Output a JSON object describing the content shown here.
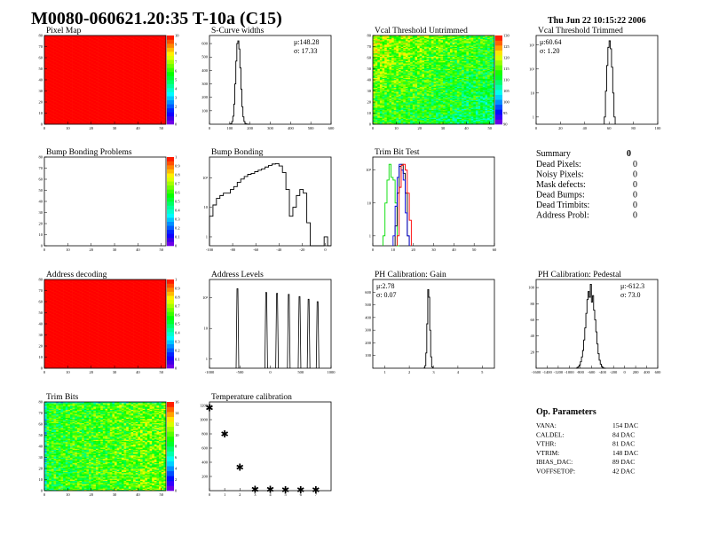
{
  "header": {
    "title": "M0080-060621.20:35 T-10a (C15)",
    "date": "Thu Jun 22 10:15:22 2006"
  },
  "summary": {
    "title": "Summary",
    "total": "0",
    "rows": [
      {
        "label": "Dead Pixels:",
        "value": "0"
      },
      {
        "label": "Noisy Pixels:",
        "value": "0"
      },
      {
        "label": "Mask defects:",
        "value": "0"
      },
      {
        "label": "Dead Bumps:",
        "value": "0"
      },
      {
        "label": "Dead Trimbits:",
        "value": "0"
      },
      {
        "label": "Address Probl:",
        "value": "0"
      }
    ]
  },
  "op_parameters": {
    "title": "Op. Parameters",
    "rows": [
      {
        "label": "VANA:",
        "value": "154 DAC"
      },
      {
        "label": "CALDEL:",
        "value": "84 DAC"
      },
      {
        "label": "VTHR:",
        "value": "81 DAC"
      },
      {
        "label": "VTRIM:",
        "value": "148 DAC"
      },
      {
        "label": "IBIAS_DAC:",
        "value": "89 DAC"
      },
      {
        "label": "VOFFSETOP:",
        "value": "42 DAC"
      }
    ]
  },
  "chart_data": [
    {
      "type": "heatmap",
      "title": "Pixel Map",
      "xlim": [
        0,
        52
      ],
      "ylim": [
        0,
        80
      ],
      "zlim": [
        0,
        10
      ],
      "xticks": [
        "0",
        "10",
        "20",
        "30",
        "40",
        "50"
      ],
      "yticks": [
        "0",
        "10",
        "20",
        "30",
        "40",
        "50",
        "60",
        "70",
        "80"
      ],
      "zticks": [
        "0",
        "1",
        "2",
        "3",
        "4",
        "5",
        "6",
        "7",
        "8",
        "9",
        "10"
      ],
      "uniform_value": 10
    },
    {
      "type": "bar",
      "title": "S-Curve widths",
      "xlim": [
        0,
        600
      ],
      "ylim": [
        0,
        660
      ],
      "log": false,
      "xticks": [
        "0",
        "100",
        "200",
        "300",
        "400",
        "500",
        "600"
      ],
      "yticks": [
        "100",
        "200",
        "300",
        "400",
        "500",
        "600"
      ],
      "stats": [
        "μ:148.28",
        "σ: 17.33"
      ],
      "series": [
        {
          "color": "#000000",
          "x0": 100,
          "dx": 5,
          "counts": [
            2,
            5,
            20,
            60,
            150,
            300,
            470,
            600,
            620,
            560,
            420,
            260,
            130,
            55,
            20,
            6,
            2,
            1,
            0,
            0
          ]
        }
      ]
    },
    {
      "type": "heatmap",
      "title": "Vcal Threshold Untrimmed",
      "xlim": [
        0,
        52
      ],
      "ylim": [
        0,
        80
      ],
      "zlim": [
        90,
        130
      ],
      "xticks": [
        "0",
        "10",
        "20",
        "30",
        "40",
        "50"
      ],
      "yticks": [
        "0",
        "10",
        "20",
        "30",
        "40",
        "50",
        "60",
        "70",
        "80"
      ],
      "zticks": [
        "90",
        "95",
        "100",
        "105",
        "110",
        "115",
        "120",
        "125",
        "130"
      ]
    },
    {
      "type": "bar",
      "title": "Vcal Threshold Trimmed",
      "xlim": [
        0,
        100
      ],
      "ylim": [
        0.5,
        2500
      ],
      "log": true,
      "xticks": [
        "0",
        "20",
        "40",
        "60",
        "80",
        "100"
      ],
      "yticks": [
        "1",
        "10",
        "10²",
        "10³"
      ],
      "stats": [
        "μ:60.64",
        "σ: 1.20"
      ],
      "series": [
        {
          "color": "#000000",
          "x0": 56,
          "dx": 1,
          "counts": [
            1,
            12,
            140,
            800,
            1500,
            700,
            120,
            10,
            1
          ]
        }
      ]
    },
    {
      "type": "heatmap",
      "title": "Bump Bonding Problems",
      "xlim": [
        0,
        52
      ],
      "ylim": [
        0,
        80
      ],
      "zlim": [
        0,
        1
      ],
      "xticks": [
        "0",
        "10",
        "20",
        "30",
        "40",
        "50"
      ],
      "yticks": [
        "0",
        "10",
        "20",
        "30",
        "40",
        "50",
        "60",
        "70",
        "80"
      ],
      "zticks": [
        "0",
        "0.1",
        "0.2",
        "0.3",
        "0.4",
        "0.5",
        "0.6",
        "0.7",
        "0.8",
        "0.9",
        "1"
      ],
      "empty": true
    },
    {
      "type": "bar",
      "title": "Bump Bonding",
      "xlim": [
        -100,
        5
      ],
      "ylim": [
        0.5,
        500
      ],
      "log": true,
      "xticks": [
        "-100",
        "-80",
        "-60",
        "-40",
        "-20",
        "0"
      ],
      "yticks": [
        "1",
        "10",
        "10²"
      ],
      "series": [
        {
          "color": "#000000",
          "x0": -100,
          "dx": 3,
          "counts": [
            5,
            12,
            20,
            25,
            30,
            30,
            40,
            50,
            70,
            90,
            110,
            130,
            140,
            160,
            180,
            200,
            230,
            260,
            290,
            300,
            250,
            150,
            40,
            5,
            10,
            25,
            40,
            30,
            3,
            0,
            0,
            0,
            0,
            1,
            0
          ]
        }
      ]
    },
    {
      "type": "bar",
      "title": "Trim Bit Test",
      "xlim": [
        0,
        60
      ],
      "ylim": [
        0.5,
        250
      ],
      "log": true,
      "xticks": [
        "0",
        "10",
        "20",
        "30",
        "40",
        "50",
        "60"
      ],
      "yticks": [
        "1",
        "10",
        "10²"
      ],
      "series": [
        {
          "color": "#00dd00",
          "x0": 5,
          "dx": 1,
          "counts": [
            1,
            10,
            50,
            150,
            60,
            50,
            10,
            0
          ]
        },
        {
          "color": "#000000",
          "x0": 11,
          "dx": 1,
          "counts": [
            2,
            20,
            130,
            150,
            80,
            20,
            1
          ]
        },
        {
          "color": "#0000dd",
          "x0": 10,
          "dx": 1,
          "counts": [
            1,
            8,
            60,
            150,
            100,
            50,
            5,
            1
          ]
        },
        {
          "color": "#ff0000",
          "x0": 12,
          "dx": 1,
          "counts": [
            1,
            30,
            140,
            150,
            100,
            20,
            3
          ]
        }
      ]
    },
    {
      "type": "heatmap",
      "title": "Address decoding",
      "xlim": [
        0,
        52
      ],
      "ylim": [
        0,
        80
      ],
      "zlim": [
        0,
        1
      ],
      "xticks": [
        "0",
        "10",
        "20",
        "30",
        "40",
        "50"
      ],
      "yticks": [
        "0",
        "10",
        "20",
        "30",
        "40",
        "50",
        "60",
        "70",
        "80"
      ],
      "zticks": [
        "0",
        "0.1",
        "0.2",
        "0.3",
        "0.4",
        "0.5",
        "0.6",
        "0.7",
        "0.8",
        "0.9",
        "1"
      ],
      "uniform_value": 1
    },
    {
      "type": "bar",
      "title": "Address Levels",
      "xlim": [
        -1000,
        1000
      ],
      "ylim": [
        0.5,
        400
      ],
      "log": true,
      "xticks": [
        "-1000",
        "-500",
        "0",
        "500",
        "1000"
      ],
      "yticks": [
        "1",
        "10",
        "10²"
      ],
      "peaks": [
        {
          "x": -540,
          "height": 200
        },
        {
          "x": -67,
          "height": 150
        },
        {
          "x": 111,
          "height": 140
        },
        {
          "x": 304,
          "height": 130
        },
        {
          "x": 481,
          "height": 110
        },
        {
          "x": 630,
          "height": 90
        },
        {
          "x": 778,
          "height": 75
        }
      ]
    },
    {
      "type": "bar",
      "title": "PH Calibration: Gain",
      "xlim": [
        0.5,
        5.5
      ],
      "ylim": [
        0,
        700
      ],
      "log": false,
      "xticks": [
        "1",
        "2",
        "3",
        "4",
        "5"
      ],
      "yticks": [
        "100",
        "200",
        "300",
        "400",
        "500",
        "600"
      ],
      "stats": [
        "μ:2.78",
        "σ: 0.07"
      ],
      "series": [
        {
          "color": "#000000",
          "x0": 2.6,
          "dx": 0.04,
          "counts": [
            2,
            20,
            120,
            350,
            620,
            560,
            300,
            90,
            10
          ]
        }
      ]
    },
    {
      "type": "bar",
      "title": "PH Calibration: Pedestal",
      "xlim": [
        -1600,
        600
      ],
      "ylim": [
        0,
        110
      ],
      "log": false,
      "xticks": [
        "-1600",
        "-1400",
        "-1200",
        "-1000",
        "-800",
        "-600",
        "-400",
        "-200",
        "0",
        "200",
        "400",
        "600"
      ],
      "yticks": [
        "20",
        "40",
        "60",
        "80",
        "100"
      ],
      "stats": [
        "μ:-612.3",
        "σ: 73.0"
      ],
      "series": [
        {
          "color": "#000000",
          "x0": -880,
          "dx": 20,
          "counts": [
            0,
            1,
            2,
            4,
            8,
            14,
            22,
            35,
            50,
            68,
            85,
            95,
            88,
            104,
            82,
            90,
            72,
            60,
            45,
            30,
            18,
            10,
            5,
            2,
            1,
            0,
            0
          ]
        }
      ]
    },
    {
      "type": "heatmap",
      "title": "Trim Bits",
      "xlim": [
        0,
        52
      ],
      "ylim": [
        0,
        80
      ],
      "zlim": [
        0,
        16
      ],
      "xticks": [
        "0",
        "10",
        "20",
        "30",
        "40",
        "50"
      ],
      "yticks": [
        "0",
        "10",
        "20",
        "30",
        "40",
        "50",
        "60",
        "70",
        "80"
      ],
      "zticks": [
        "0",
        "2",
        "4",
        "6",
        "8",
        "10",
        "12",
        "14",
        "16"
      ]
    },
    {
      "type": "scatter",
      "title": "Temperature calibration",
      "xlim": [
        0,
        8
      ],
      "ylim": [
        0,
        1250
      ],
      "xticks": [
        "0",
        "1",
        "2",
        "3",
        "4",
        "5",
        "6",
        "7"
      ],
      "yticks": [
        "200",
        "400",
        "600",
        "800",
        "1000",
        "1200"
      ],
      "marker": "star",
      "points": [
        [
          0,
          1170
        ],
        [
          1,
          800
        ],
        [
          2,
          330
        ],
        [
          3,
          20
        ],
        [
          4,
          20
        ],
        [
          5,
          15
        ],
        [
          6,
          15
        ],
        [
          7,
          15
        ]
      ]
    }
  ]
}
